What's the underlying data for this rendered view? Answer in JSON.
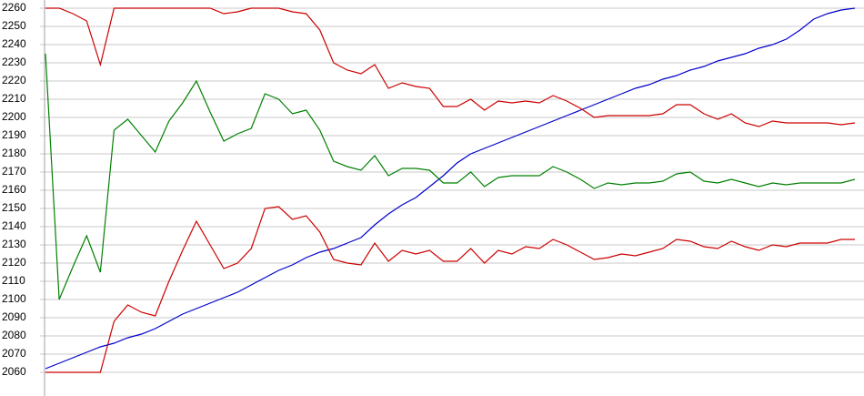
{
  "chart_data": {
    "type": "line",
    "ylim": [
      2060,
      2260
    ],
    "yticks": [
      2060,
      2070,
      2080,
      2090,
      2100,
      2110,
      2120,
      2130,
      2140,
      2150,
      2160,
      2170,
      2180,
      2190,
      2200,
      2210,
      2220,
      2230,
      2240,
      2250,
      2260
    ],
    "grid": true,
    "series": [
      {
        "color": "#0000cc",
        "values": [
          2062,
          2065,
          2068,
          2071,
          2074,
          2076,
          2079,
          2081,
          2084,
          2088,
          2092,
          2095,
          2098,
          2101,
          2104,
          2108,
          2112,
          2116,
          2119,
          2123,
          2126,
          2128,
          2131,
          2134,
          2141,
          2147,
          2152,
          2156,
          2162,
          2168,
          2175,
          2180,
          2183,
          2186,
          2189,
          2192,
          2195,
          2198,
          2201,
          2204,
          2207,
          2210,
          2213,
          2216,
          2218,
          2221,
          2223,
          2226,
          2228,
          2231,
          2233,
          2235,
          2238,
          2240,
          2243,
          2248,
          2254,
          2257,
          2259,
          2260
        ]
      },
      {
        "color": "#cc0000",
        "values": [
          2260,
          2260,
          2257,
          2253,
          2229,
          2260,
          2260,
          2260,
          2260,
          2260,
          2260,
          2260,
          2260,
          2257,
          2258,
          2260,
          2260,
          2260,
          2258,
          2257,
          2248,
          2230,
          2226,
          2224,
          2229,
          2216,
          2219,
          2217,
          2216,
          2206,
          2206,
          2210,
          2204,
          2209,
          2208,
          2209,
          2208,
          2212,
          2209,
          2205,
          2200,
          2201,
          2201,
          2201,
          2201,
          2202,
          2207,
          2207,
          2202,
          2199,
          2202,
          2197,
          2195,
          2198,
          2197,
          2197,
          2197,
          2197,
          2196,
          2197
        ]
      },
      {
        "color": "#008000",
        "values": [
          2235,
          2100,
          2118,
          2135,
          2115,
          2193,
          2199,
          2190,
          2181,
          2198,
          2208,
          2220,
          2203,
          2187,
          2191,
          2194,
          2213,
          2210,
          2202,
          2204,
          2193,
          2176,
          2173,
          2171,
          2179,
          2168,
          2172,
          2172,
          2171,
          2164,
          2164,
          2170,
          2162,
          2167,
          2168,
          2168,
          2168,
          2173,
          2170,
          2166,
          2161,
          2164,
          2163,
          2164,
          2164,
          2165,
          2169,
          2170,
          2165,
          2164,
          2166,
          2164,
          2162,
          2164,
          2163,
          2164,
          2164,
          2164,
          2164,
          2166
        ]
      },
      {
        "color": "#cc0000",
        "values": [
          2060,
          2060,
          2060,
          2060,
          2060,
          2088,
          2097,
          2093,
          2091,
          2110,
          2127,
          2143,
          2130,
          2117,
          2120,
          2128,
          2150,
          2151,
          2144,
          2146,
          2137,
          2122,
          2120,
          2119,
          2131,
          2121,
          2127,
          2125,
          2127,
          2121,
          2121,
          2128,
          2120,
          2127,
          2125,
          2129,
          2128,
          2133,
          2130,
          2126,
          2122,
          2123,
          2125,
          2124,
          2126,
          2128,
          2133,
          2132,
          2129,
          2128,
          2132,
          2129,
          2127,
          2130,
          2129,
          2131,
          2131,
          2131,
          2133,
          2133
        ]
      }
    ]
  }
}
